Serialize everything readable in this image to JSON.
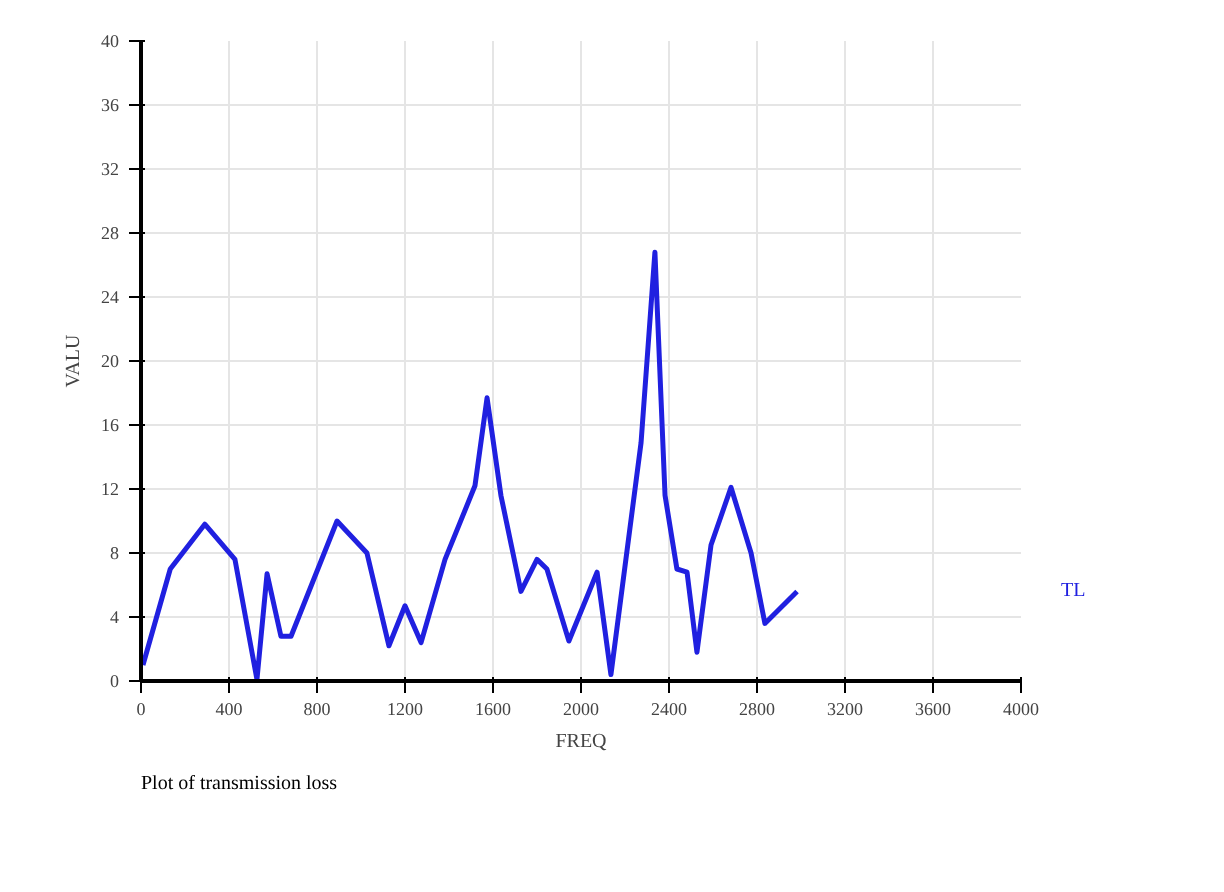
{
  "chart_data": {
    "type": "line",
    "xlabel": "FREQ",
    "ylabel": "VALU",
    "annotations": [
      "Plot of transmission loss"
    ],
    "xlim": [
      0,
      4000
    ],
    "xticks": [
      0,
      400,
      800,
      1200,
      1600,
      2000,
      2400,
      2800,
      3200,
      3600,
      4000
    ],
    "ylim": [
      0,
      40
    ],
    "yticks": [
      0,
      4,
      8,
      12,
      16,
      20,
      24,
      28,
      32,
      36,
      40
    ],
    "grid": true,
    "marker": "none",
    "line_style": "solid",
    "x": [
      9,
      133,
      290,
      427,
      527,
      573,
      636,
      682,
      891,
      1027,
      1127,
      1200,
      1273,
      1382,
      1518,
      1573,
      1636,
      1727,
      1800,
      1845,
      1945,
      2073,
      2136,
      2273,
      2336,
      2382,
      2436,
      2482,
      2527,
      2591,
      2682,
      2773,
      2836,
      2982
    ],
    "series": [
      {
        "name": "TL",
        "color": "#2020e0",
        "values": [
          1.0,
          7.0,
          9.8,
          7.6,
          0.1,
          6.7,
          2.8,
          2.8,
          10,
          8,
          2.2,
          4.7,
          2.4,
          7.6,
          12.2,
          17.7,
          11.6,
          5.6,
          7.6,
          7.0,
          2.5,
          6.8,
          0.4,
          14.9,
          26.8,
          11.6,
          7.0,
          6.8,
          1.8,
          8.5,
          12.1,
          8.0,
          3.6,
          5.6
        ]
      }
    ]
  }
}
